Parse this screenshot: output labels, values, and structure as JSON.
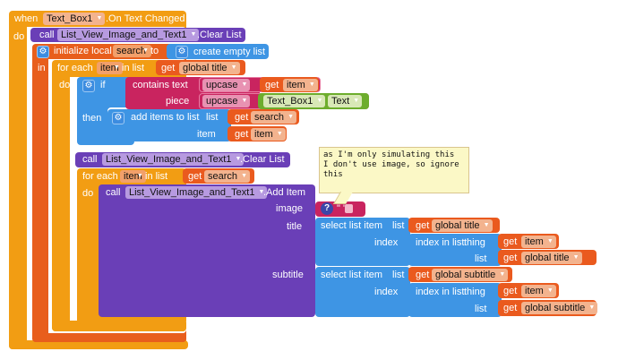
{
  "event": {
    "when": "when",
    "component": "Text_Box1",
    "event_name": ".On Text Changed",
    "do": "do"
  },
  "call1": {
    "call": "call",
    "component": "List_View_Image_and_Text1",
    "method": ".Clear List"
  },
  "init_local": {
    "label": "initialize local",
    "var": "search",
    "to": "to",
    "in": "in",
    "create_empty_list": "create empty list"
  },
  "foreach1": {
    "for_each": "for each",
    "item": "item",
    "in_list": "in list",
    "do": "do",
    "get": "get",
    "global_title": "global title"
  },
  "if_block": {
    "if": "if",
    "then": "then",
    "contains": "contains",
    "text": "text",
    "piece": "piece",
    "upcase": "upcase",
    "get": "get",
    "item": "item",
    "text_box": "Text_Box1",
    "text_prop": "Text"
  },
  "add_items": {
    "label": "add items to list",
    "list": "list",
    "item": "item",
    "get": "get",
    "search": "search",
    "item_var": "item"
  },
  "call2": {
    "call": "call",
    "component": "List_View_Image_and_Text1",
    "method": ".Clear List"
  },
  "foreach2": {
    "for_each": "for each",
    "item": "item",
    "in_list": "in list",
    "do": "do",
    "get": "get",
    "search": "search"
  },
  "call3": {
    "call": "call",
    "component": "List_View_Image_and_Text1",
    "method": ".Add Item",
    "image": "image",
    "title": "title",
    "subtitle": "subtitle",
    "empty_text": "\" \""
  },
  "title_select": {
    "select": "select list item",
    "list": "list",
    "index": "index",
    "get": "get",
    "global_title": "global title",
    "index_in_list": "index in list",
    "thing": "thing",
    "item": "item"
  },
  "subtitle_select": {
    "select": "select list item",
    "list": "list",
    "index": "index",
    "get": "get",
    "global_subtitle": "global subtitle",
    "index_in_list": "index in list",
    "thing": "thing",
    "item": "item"
  },
  "comment": {
    "line1": "as I'm only simulating this",
    "line2": "I don't use image, so ignore",
    "line3": "this",
    "badge": "?"
  },
  "colors": {
    "event": "#f29d13",
    "component_call": "#6a3fb7",
    "variables": "#ea5a1e",
    "lists": "#3e95e4",
    "text": "#c9245f",
    "text_box": "#6dad2d"
  }
}
